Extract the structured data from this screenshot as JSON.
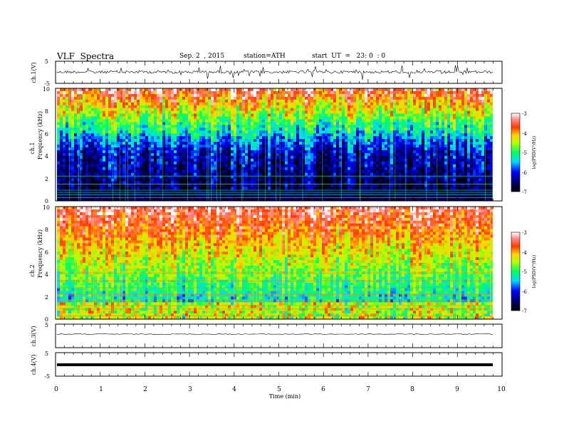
{
  "header": {
    "title": "VLF  Spectra",
    "date": "Sep. 2  , 2015",
    "station": "station=ATH",
    "start": "start  UT  =   23: 0  : 0"
  },
  "chart_data": [
    {
      "type": "line",
      "ylabel": "ch.1(V)",
      "ylim": [
        -5,
        5
      ],
      "yticks": [
        "5",
        "-5"
      ],
      "xlim": [
        0,
        10
      ]
    },
    {
      "type": "heatmap",
      "ylabel_line1": "ch.1",
      "ylabel_line2": "Frequency  (kHz)",
      "ylim": [
        0,
        10
      ],
      "yticks": [
        "0",
        "2",
        "4",
        "6",
        "8",
        "10"
      ],
      "xlim": [
        0,
        10
      ],
      "colorbar": {
        "label": "log(PSD(V²/Hz)",
        "range": [
          -7,
          -3
        ],
        "ticks": [
          "-3",
          "-4",
          "-5",
          "-6",
          "-7"
        ]
      }
    },
    {
      "type": "heatmap",
      "ylabel_line1": "ch.2",
      "ylabel_line2": "Frequency  (kHz)",
      "ylim": [
        0,
        10
      ],
      "yticks": [
        "0",
        "2",
        "4",
        "6",
        "8",
        "10"
      ],
      "xlim": [
        0,
        10
      ],
      "colorbar": {
        "label": "log(PSD(V²/Hz)",
        "range": [
          -7,
          -3
        ],
        "ticks": [
          "-3",
          "-4",
          "-5",
          "-6",
          "-7"
        ]
      }
    },
    {
      "type": "line",
      "ylabel": "ch.3(V)",
      "ylim": [
        -5,
        5
      ],
      "yticks": [
        "5"
      ],
      "xlim": [
        0,
        10
      ]
    },
    {
      "type": "line",
      "ylabel": "ch.4(V)",
      "ylim": [
        -5,
        5
      ],
      "yticks": [
        "5",
        "-5"
      ],
      "xlim": [
        0,
        10
      ],
      "xlabel": "Time  (min)",
      "xticks": [
        "0",
        "1",
        "2",
        "3",
        "4",
        "5",
        "6",
        "7",
        "8",
        "9",
        "10"
      ]
    }
  ]
}
